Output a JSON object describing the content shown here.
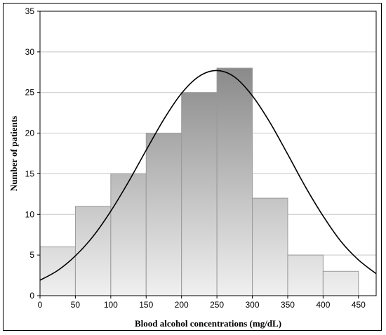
{
  "chart_data": {
    "type": "bar",
    "subtype": "histogram",
    "title": "",
    "xlabel": "Blood alcohol concentrations (mg/dL)",
    "ylabel": "Number of patients",
    "bins": [
      {
        "from": 0,
        "to": 50,
        "value": 6
      },
      {
        "from": 50,
        "to": 100,
        "value": 11
      },
      {
        "from": 100,
        "to": 150,
        "value": 15
      },
      {
        "from": 150,
        "to": 200,
        "value": 20
      },
      {
        "from": 200,
        "to": 250,
        "value": 25
      },
      {
        "from": 250,
        "to": 300,
        "value": 28
      },
      {
        "from": 300,
        "to": 350,
        "value": 12
      },
      {
        "from": 350,
        "to": 400,
        "value": 5
      },
      {
        "from": 400,
        "to": 450,
        "value": 3
      }
    ],
    "xlim": [
      0,
      475
    ],
    "ylim": [
      0,
      35
    ],
    "xticks": [
      "0",
      "50",
      "100",
      "150",
      "200",
      "250",
      "300",
      "350",
      "400",
      "450"
    ],
    "yticks": [
      "0",
      "5",
      "10",
      "15",
      "20",
      "25",
      "30",
      "35"
    ],
    "grid": true,
    "fit_curve": {
      "type": "normal",
      "x": [
        0,
        25,
        50,
        75,
        100,
        125,
        150,
        175,
        200,
        225,
        250,
        275,
        300,
        325,
        350,
        375,
        400,
        425,
        450,
        475
      ],
      "y": [
        1.9,
        3.1,
        4.9,
        7.3,
        10.4,
        14.0,
        17.9,
        21.7,
        24.9,
        27.0,
        27.7,
        26.9,
        24.6,
        21.3,
        17.4,
        13.4,
        9.8,
        6.7,
        4.4,
        2.7
      ]
    },
    "colors": {
      "bar_top": "#8a8a8a",
      "bar_bottom": "#f0f0f0",
      "curve": "#000000",
      "grid": "#c8c8c8"
    }
  }
}
